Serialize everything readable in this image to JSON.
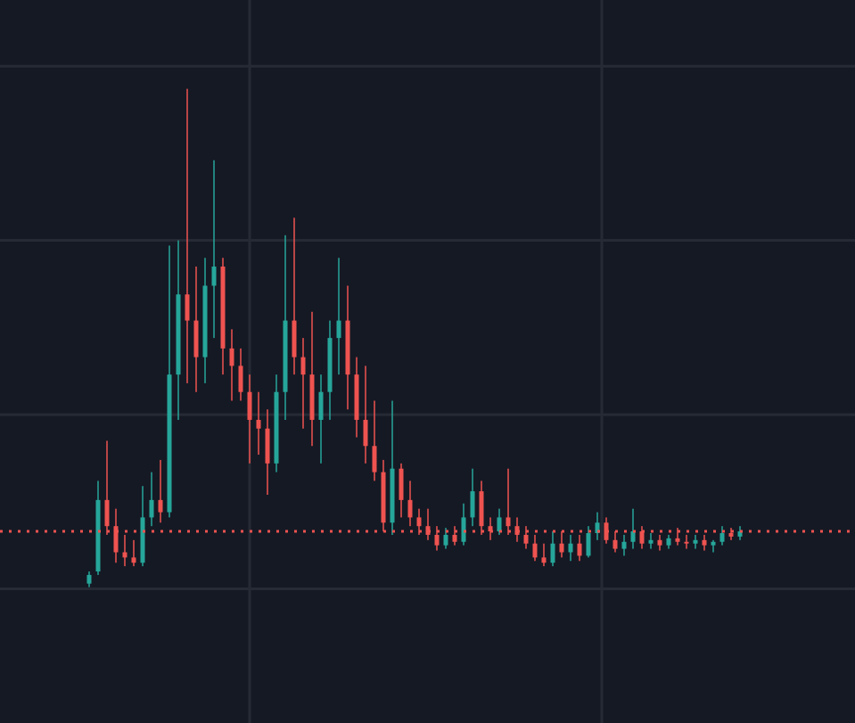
{
  "chart_data": {
    "type": "candlestick",
    "background": "#151924",
    "grid_color": "#262a35",
    "up_color": "#26a69a",
    "down_color": "#ef5350",
    "xlim": [
      -10,
      85.9
    ],
    "xticks": [
      18,
      57.5
    ],
    "ylim": [
      -0.77,
      3.38
    ],
    "yticks": [
      0,
      1,
      2,
      3
    ],
    "grid": true,
    "price_line": 0.33,
    "x": [
      0,
      1,
      2,
      3,
      4,
      5,
      6,
      7,
      8,
      9,
      10,
      11,
      12,
      13,
      14,
      15,
      16,
      17,
      18,
      19,
      20,
      21,
      22,
      23,
      24,
      25,
      26,
      27,
      28,
      29,
      30,
      31,
      32,
      33,
      34,
      35,
      36,
      37,
      38,
      39,
      40,
      41,
      42,
      43,
      44,
      45,
      46,
      47,
      48,
      49,
      50,
      51,
      52,
      53,
      54,
      55,
      56,
      57,
      58,
      59,
      60,
      61,
      62,
      63,
      64,
      65,
      66,
      67,
      68,
      69,
      70,
      71,
      72,
      73
    ],
    "open": [
      0.03,
      0.1,
      0.51,
      0.36,
      0.21,
      0.18,
      0.15,
      0.41,
      0.51,
      0.44,
      1.23,
      1.69,
      1.54,
      1.33,
      1.74,
      1.85,
      1.38,
      1.28,
      1.13,
      0.97,
      0.92,
      0.72,
      1.13,
      1.54,
      1.33,
      1.23,
      0.97,
      1.13,
      1.44,
      1.54,
      1.23,
      0.97,
      0.82,
      0.67,
      0.38,
      0.69,
      0.51,
      0.41,
      0.36,
      0.31,
      0.25,
      0.31,
      0.27,
      0.41,
      0.56,
      0.36,
      0.33,
      0.41,
      0.36,
      0.31,
      0.26,
      0.18,
      0.15,
      0.26,
      0.21,
      0.26,
      0.19,
      0.32,
      0.38,
      0.28,
      0.23,
      0.27,
      0.33,
      0.26,
      0.28,
      0.25,
      0.29,
      0.27,
      0.26,
      0.28,
      0.25,
      0.27,
      0.32,
      0.3
    ],
    "high": [
      0.1,
      0.62,
      0.85,
      0.46,
      0.31,
      0.28,
      0.59,
      0.67,
      0.74,
      1.97,
      2.0,
      2.87,
      1.85,
      1.9,
      2.46,
      1.9,
      1.49,
      1.38,
      1.23,
      1.13,
      1.03,
      1.23,
      2.03,
      2.13,
      1.44,
      1.59,
      1.23,
      1.54,
      1.9,
      1.74,
      1.33,
      1.28,
      1.08,
      0.74,
      1.08,
      0.72,
      0.62,
      0.46,
      0.46,
      0.36,
      0.35,
      0.36,
      0.49,
      0.69,
      0.62,
      0.41,
      0.46,
      0.69,
      0.41,
      0.36,
      0.31,
      0.26,
      0.33,
      0.33,
      0.31,
      0.31,
      0.36,
      0.44,
      0.41,
      0.33,
      0.31,
      0.46,
      0.36,
      0.32,
      0.31,
      0.31,
      0.35,
      0.31,
      0.31,
      0.31,
      0.28,
      0.36,
      0.35,
      0.36
    ],
    "low": [
      0.01,
      0.08,
      0.31,
      0.15,
      0.13,
      0.13,
      0.13,
      0.36,
      0.38,
      0.41,
      0.97,
      1.18,
      1.13,
      1.18,
      1.44,
      1.23,
      1.08,
      1.08,
      0.72,
      0.77,
      0.54,
      0.67,
      0.97,
      1.23,
      0.92,
      0.82,
      0.72,
      0.97,
      1.23,
      1.03,
      0.87,
      0.72,
      0.62,
      0.33,
      0.31,
      0.41,
      0.36,
      0.31,
      0.28,
      0.22,
      0.23,
      0.25,
      0.25,
      0.36,
      0.31,
      0.28,
      0.31,
      0.31,
      0.27,
      0.23,
      0.16,
      0.13,
      0.13,
      0.18,
      0.16,
      0.16,
      0.18,
      0.28,
      0.26,
      0.21,
      0.19,
      0.23,
      0.23,
      0.23,
      0.22,
      0.23,
      0.25,
      0.23,
      0.23,
      0.22,
      0.21,
      0.25,
      0.28,
      0.28
    ],
    "close": [
      0.08,
      0.51,
      0.36,
      0.21,
      0.18,
      0.15,
      0.41,
      0.51,
      0.44,
      1.23,
      1.69,
      1.54,
      1.33,
      1.74,
      1.85,
      1.38,
      1.28,
      1.13,
      0.97,
      0.92,
      0.72,
      1.13,
      1.54,
      1.33,
      1.23,
      0.97,
      1.13,
      1.44,
      1.54,
      1.23,
      0.97,
      0.82,
      0.67,
      0.38,
      0.69,
      0.51,
      0.41,
      0.36,
      0.31,
      0.25,
      0.31,
      0.27,
      0.41,
      0.56,
      0.36,
      0.33,
      0.41,
      0.36,
      0.31,
      0.26,
      0.18,
      0.15,
      0.26,
      0.21,
      0.26,
      0.19,
      0.32,
      0.38,
      0.28,
      0.23,
      0.27,
      0.33,
      0.26,
      0.28,
      0.25,
      0.29,
      0.27,
      0.26,
      0.28,
      0.25,
      0.27,
      0.32,
      0.3,
      0.33
    ]
  }
}
